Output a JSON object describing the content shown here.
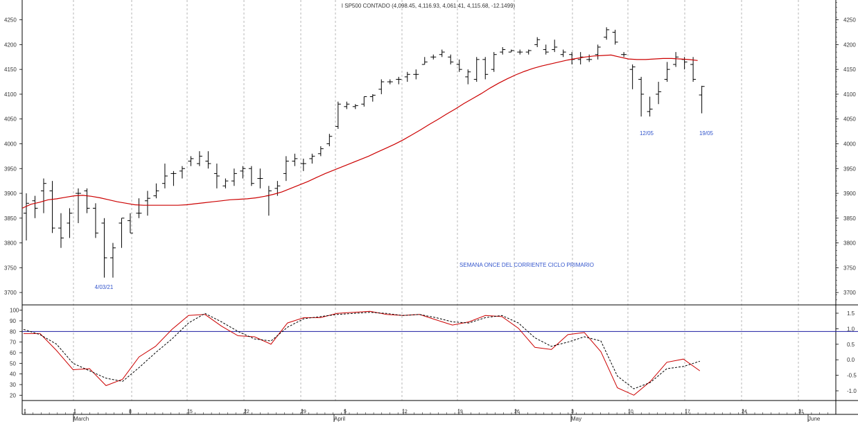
{
  "chart_data": [
    {
      "type": "ohlc",
      "title": "I SP500 CONTADO (4,098.45, 4,116.93, 4,061.41, 4,115.68, -12.1499)",
      "y_ticks": [
        3700,
        3750,
        3800,
        3850,
        3900,
        3950,
        4000,
        4050,
        4100,
        4150,
        4200,
        4250
      ],
      "ylim": [
        3675,
        4290
      ],
      "bars": [
        [
          3860,
          3900,
          3805,
          3880
        ],
        [
          3885,
          3895,
          3850,
          3870
        ],
        [
          3905,
          3930,
          3860,
          3920
        ],
        [
          3905,
          3925,
          3820,
          3830
        ],
        [
          3830,
          3860,
          3790,
          3810
        ],
        [
          3840,
          3870,
          3810,
          3860
        ],
        [
          3900,
          3910,
          3840,
          3900
        ],
        [
          3905,
          3910,
          3860,
          3870
        ],
        [
          3870,
          3880,
          3810,
          3820
        ],
        [
          3840,
          3850,
          3730,
          3770
        ],
        [
          3770,
          3800,
          3730,
          3790
        ],
        [
          3840,
          3850,
          3790,
          3850
        ],
        [
          3845,
          3860,
          3820,
          3820
        ],
        [
          3860,
          3890,
          3850,
          3860
        ],
        [
          3885,
          3905,
          3855,
          3890
        ],
        [
          3895,
          3920,
          3890,
          3905
        ],
        [
          3920,
          3960,
          3910,
          3935
        ],
        [
          3940,
          3945,
          3915,
          3940
        ],
        [
          3945,
          3955,
          3930,
          3950
        ],
        [
          3965,
          3975,
          3955,
          3970
        ],
        [
          3960,
          3985,
          3955,
          3975
        ],
        [
          3965,
          3985,
          3950,
          3960
        ],
        [
          3940,
          3960,
          3910,
          3935
        ],
        [
          3915,
          3930,
          3910,
          3925
        ],
        [
          3925,
          3950,
          3915,
          3940
        ],
        [
          3945,
          3955,
          3930,
          3950
        ],
        [
          3950,
          3955,
          3915,
          3920
        ],
        [
          3930,
          3950,
          3910,
          3930
        ],
        [
          3895,
          3915,
          3855,
          3905
        ],
        [
          3910,
          3925,
          3895,
          3915
        ],
        [
          3940,
          3975,
          3925,
          3965
        ],
        [
          3965,
          3980,
          3955,
          3970
        ],
        [
          3960,
          3970,
          3945,
          3960
        ],
        [
          3970,
          3980,
          3960,
          3975
        ],
        [
          3980,
          3995,
          3975,
          3990
        ],
        [
          4000,
          4020,
          3995,
          4015
        ],
        [
          4035,
          4085,
          4030,
          4080
        ],
        [
          4075,
          4085,
          4070,
          4080
        ],
        [
          4075,
          4080,
          4070,
          4077
        ],
        [
          4080,
          4095,
          4075,
          4095
        ],
        [
          4095,
          4100,
          4085,
          4098
        ],
        [
          4110,
          4130,
          4100,
          4125
        ],
        [
          4125,
          4130,
          4120,
          4125
        ],
        [
          4130,
          4135,
          4120,
          4130
        ],
        [
          4135,
          4145,
          4125,
          4140
        ],
        [
          4140,
          4150,
          4130,
          4140
        ],
        [
          4160,
          4175,
          4160,
          4165
        ],
        [
          4175,
          4180,
          4170,
          4175
        ],
        [
          4180,
          4190,
          4175,
          4185
        ],
        [
          4175,
          4180,
          4160,
          4165
        ],
        [
          4160,
          4170,
          4145,
          4150
        ],
        [
          4135,
          4150,
          4120,
          4145
        ],
        [
          4130,
          4175,
          4125,
          4170
        ],
        [
          4170,
          4175,
          4130,
          4140
        ],
        [
          4150,
          4185,
          4145,
          4180
        ],
        [
          4185,
          4195,
          4180,
          4190
        ],
        [
          4185,
          4190,
          4185,
          4188
        ],
        [
          4185,
          4190,
          4180,
          4185
        ],
        [
          4185,
          4190,
          4180,
          4188
        ],
        [
          4200,
          4215,
          4195,
          4210
        ],
        [
          4190,
          4200,
          4180,
          4185
        ],
        [
          4190,
          4210,
          4185,
          4195
        ],
        [
          4180,
          4190,
          4175,
          4185
        ],
        [
          4180,
          4185,
          4160,
          4170
        ],
        [
          4170,
          4185,
          4160,
          4175
        ],
        [
          4170,
          4180,
          4165,
          4170
        ],
        [
          4180,
          4200,
          4170,
          4195
        ],
        [
          4215,
          4235,
          4210,
          4230
        ],
        [
          4225,
          4230,
          4200,
          4205
        ],
        [
          4180,
          4185,
          4175,
          4180
        ],
        [
          4150,
          4160,
          4110,
          4155
        ],
        [
          4130,
          4135,
          4055,
          4100
        ],
        [
          4065,
          4095,
          4055,
          4070
        ],
        [
          4100,
          4125,
          4080,
          4105
        ],
        [
          4130,
          4165,
          4125,
          4150
        ],
        [
          4160,
          4185,
          4155,
          4175
        ],
        [
          4170,
          4175,
          4150,
          4165
        ],
        [
          4160,
          4175,
          4125,
          4130
        ],
        [
          4098.45,
          4116.93,
          4061.41,
          4115.68
        ]
      ],
      "moving_average": [
        3870,
        3878,
        3882,
        3887,
        3889,
        3892,
        3895,
        3896,
        3894,
        3891,
        3887,
        3883,
        3880,
        3877,
        3876,
        3876,
        3876,
        3876,
        3876,
        3877,
        3879,
        3881,
        3883,
        3885,
        3887,
        3888,
        3889,
        3891,
        3894,
        3898,
        3903,
        3910,
        3917,
        3924,
        3932,
        3940,
        3947,
        3954,
        3961,
        3968,
        3975,
        3983,
        3991,
        3999,
        4008,
        4018,
        4028,
        4039,
        4049,
        4060,
        4070,
        4081,
        4091,
        4101,
        4112,
        4122,
        4131,
        4139,
        4146,
        4152,
        4157,
        4161,
        4165,
        4169,
        4172,
        4175,
        4177,
        4178,
        4179,
        4175,
        4171,
        4170,
        4170,
        4171,
        4172,
        4172,
        4171,
        4170,
        4168
      ],
      "annotations": [
        "4/03/21",
        "12/05",
        "19/05",
        "SEMANA ONCE DEL CORRIENTE CICLO PRIMARIO"
      ],
      "colors": {
        "bars": "#000000",
        "moving_average": "#cc0000",
        "annotations": "#3355cc"
      }
    },
    {
      "type": "line",
      "y_ticks_left": [
        20,
        30,
        40,
        50,
        60,
        70,
        80,
        90,
        100
      ],
      "y_ticks_right": [
        "-1.0",
        "-0.5",
        "0.0",
        "0.5",
        "1.0",
        "1.5"
      ],
      "ylim": [
        15,
        105
      ],
      "reference_line": 80,
      "series": [
        {
          "style": "solid",
          "color": "#cc0000",
          "values": [
            [
              0,
              78
            ],
            [
              4,
              78
            ],
            [
              8,
              62
            ],
            [
              12,
              44
            ],
            [
              16,
              45
            ],
            [
              20,
              29
            ],
            [
              24,
              35
            ],
            [
              28,
              56
            ],
            [
              32,
              66
            ],
            [
              36,
              82
            ],
            [
              40,
              95
            ],
            [
              44,
              96
            ],
            [
              48,
              85
            ],
            [
              52,
              76
            ],
            [
              56,
              75
            ],
            [
              60,
              68
            ],
            [
              64,
              88
            ],
            [
              68,
              93
            ],
            [
              72,
              93
            ],
            [
              76,
              97
            ],
            [
              80,
              98
            ],
            [
              84,
              99
            ],
            [
              88,
              96
            ],
            [
              92,
              95
            ],
            [
              96,
              96
            ],
            [
              100,
              91
            ],
            [
              104,
              86
            ],
            [
              108,
              89
            ],
            [
              112,
              95
            ],
            [
              116,
              94
            ],
            [
              120,
              83
            ],
            [
              124,
              65
            ],
            [
              128,
              63
            ],
            [
              132,
              77
            ],
            [
              136,
              79
            ],
            [
              140,
              61
            ],
            [
              144,
              27
            ],
            [
              148,
              20
            ],
            [
              152,
              33
            ],
            [
              156,
              51
            ],
            [
              160,
              54
            ],
            [
              164,
              43
            ]
          ]
        },
        {
          "style": "dashed",
          "color": "#000000",
          "values": [
            [
              0,
              82
            ],
            [
              4,
              77
            ],
            [
              8,
              68
            ],
            [
              12,
              50
            ],
            [
              16,
              43
            ],
            [
              20,
              36
            ],
            [
              24,
              33
            ],
            [
              28,
              46
            ],
            [
              32,
              60
            ],
            [
              36,
              73
            ],
            [
              40,
              88
            ],
            [
              44,
              97
            ],
            [
              48,
              89
            ],
            [
              52,
              80
            ],
            [
              56,
              73
            ],
            [
              60,
              71
            ],
            [
              64,
              84
            ],
            [
              68,
              92
            ],
            [
              72,
              94
            ],
            [
              76,
              96
            ],
            [
              80,
              97
            ],
            [
              84,
              98
            ],
            [
              88,
              97
            ],
            [
              92,
              95
            ],
            [
              96,
              96
            ],
            [
              100,
              93
            ],
            [
              104,
              89
            ],
            [
              108,
              88
            ],
            [
              112,
              93
            ],
            [
              116,
              95
            ],
            [
              120,
              88
            ],
            [
              124,
              74
            ],
            [
              128,
              66
            ],
            [
              132,
              70
            ],
            [
              136,
              75
            ],
            [
              140,
              71
            ],
            [
              144,
              38
            ],
            [
              148,
              26
            ],
            [
              152,
              32
            ],
            [
              156,
              45
            ],
            [
              160,
              47
            ],
            [
              164,
              52
            ]
          ]
        }
      ]
    }
  ],
  "x_axis": {
    "day_labels": [
      "1",
      "1",
      "8",
      "15",
      "22",
      "29",
      "5",
      "12",
      "19",
      "26",
      "3",
      "10",
      "17",
      "24",
      "31"
    ],
    "month_labels": [
      "March",
      "April",
      "May",
      "June"
    ]
  }
}
